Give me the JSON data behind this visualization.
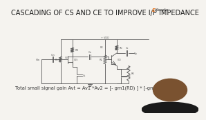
{
  "title": "CASCADING OF CS AND CE TO IMPROVE I/P IMPEDANCE",
  "formula": "Total small signal gain Avt = Av1 *Av2 = [- gm1(RD) ] * [-gm2(Rc)]",
  "bg_color": "#f5f3ef",
  "title_color": "#1a1a1a",
  "formula_color": "#333333",
  "title_fontsize": 7.0,
  "formula_fontsize": 4.8,
  "circuit_color": "#555555",
  "lw": 0.6
}
